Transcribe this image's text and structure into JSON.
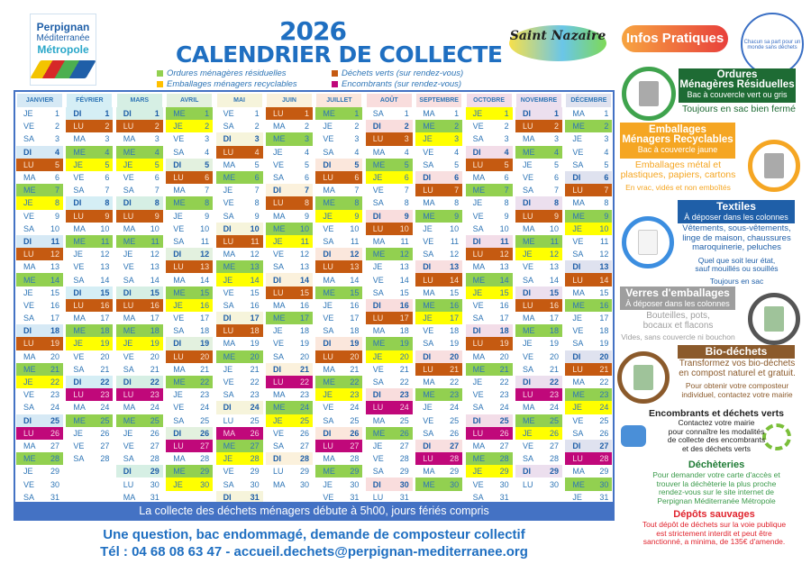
{
  "header": {
    "logo_lines": [
      "Perpignan",
      "Méditerranée",
      "Métropole"
    ],
    "year": "2026",
    "title": "CALENDRIER DE COLLECTE",
    "partner_logo": "Saint Nazaire"
  },
  "legend": [
    {
      "label": "Ordures ménagères résiduelles",
      "code": "G",
      "color": "#92d050"
    },
    {
      "label": "Emballages ménagers recyclables",
      "code": "Y",
      "color": "#ffc000"
    },
    {
      "label": "Déchets verts (sur rendez-vous)",
      "code": "O",
      "color": "#c55a11"
    },
    {
      "label": "Encombrants (sur rendez-vous)",
      "code": "M",
      "color": "#c0087a"
    }
  ],
  "weekday_abbr": [
    "LU",
    "MA",
    "ME",
    "JE",
    "VE",
    "SA",
    "DI"
  ],
  "months": [
    {
      "name": "JANVIER",
      "first_weekday": "JE",
      "tint": "#d6e9f5",
      "codes": "....O.GY...O.G....O.GY...M.G..."
    },
    {
      "name": "FÉVRIER",
      "first_weekday": "DI",
      "tint": "#d5eef5",
      "codes": ".O.GY...O.G....O.GY...M.G..."
    },
    {
      "name": "MARS",
      "first_weekday": "DI",
      "tint": "#d6efe4",
      "codes": ".O.GY...O.G....O.GY...M.G......"
    },
    {
      "name": "AVRIL",
      "first_weekday": "ME",
      "tint": "#e3f1df",
      "codes": "GY...O.G....O.GY...O.G....M.GY"
    },
    {
      "name": "MAI",
      "first_weekday": "VE",
      "tint": "#f6f4db",
      "codes": "...O.G....O.GY...O.G.....MGY..."
    },
    {
      "name": "JUIN",
      "first_weekday": "LU",
      "tint": "#fbf1dc",
      "codes": "O.G....O.GY...O.G....M.GY....."
    },
    {
      "name": "JUILLET",
      "first_weekday": "ME",
      "tint": "#fbe7dc",
      "codes": "G....O.GY...O.G....O.GY...M.G.."
    },
    {
      "name": "AOÛT",
      "first_weekday": "SA",
      "tint": "#f9dddd",
      "codes": "..O.GY...O.G....O.GY...M.G....."
    },
    {
      "name": "SEPTEMBRE",
      "first_weekday": "MA",
      "tint": "#f8dfe0",
      "codes": ".GY...O.G....O.GY...O.G....M.G"
    },
    {
      "name": "OCTOBRE",
      "first_weekday": "JE",
      "tint": "#f3dde8",
      "codes": "Y...O.G....O.GY...O.G....M.GY.."
    },
    {
      "name": "NOVEMBRE",
      "first_weekday": "DI",
      "tint": "#ecdfee",
      "codes": ".O.G....O.GY...O.G....M.GY...."
    },
    {
      "name": "DÉCEMBRE",
      "first_weekday": "MA",
      "tint": "#dfe2ef",
      "codes": ".G....O.GY...O.G....O.GY...M.G."
    }
  ],
  "banner": "La collecte des déchets ménagers débute à 5h00, jours fériés compris",
  "footer": {
    "line1": "Une question, bac endommagé, demande de composteur collectif",
    "line2": "Tél : 04 68 08 63 47 - accueil.dechets@perpignan-mediterranee.org"
  },
  "infos": {
    "title": "Infos Pratiques",
    "seal": "Chacun sa part pour un monde sans déchets",
    "omr": {
      "title1": "Ordures",
      "title2": "Ménagères Résiduelles",
      "sub": "Bac à couvercle vert ou gris",
      "note": "Toujours en sac bien fermé",
      "color": "#1e6b34"
    },
    "emb": {
      "title1": "Emballages",
      "title2": "Ménagers Recyclables",
      "sub": "Bac à couvercle jaune",
      "note1": "Emballages métal et",
      "note2": "plastiques, papiers, cartons",
      "note3": "En vrac, vidés et non emboîtés",
      "color": "#f5a623"
    },
    "tex": {
      "title": "Textiles",
      "sub": "À déposer dans les colonnes",
      "l1": "Vêtements, sous-vêtements,",
      "l2": "linge de maison, chaussures",
      "l3": "maroquinerie, peluches",
      "n1": "Quel que soit leur état,",
      "n2": "sauf mouillés ou souillés",
      "n3": "Toujours en sac",
      "color": "#1f5fa8"
    },
    "verre": {
      "title": "Verres d'emballages",
      "sub": "À déposer dans les colonnes",
      "l1": "Bouteilles, pots,",
      "l2": "bocaux et flacons",
      "n1": "Vides, sans couvercle ni bouchon",
      "color": "#9e9e9e"
    },
    "bio": {
      "title": "Bio-déchets",
      "l1": "Transformez vos bio-déchets",
      "l2": "en compost naturel et gratuit.",
      "n1": "Pour obtenir votre composteur",
      "n2": "individuel, contactez votre mairie",
      "color": "#8b5a2b"
    },
    "enc": {
      "title": "Encombrants et déchets verts",
      "l1": "Contactez votre mairie",
      "l2": "pour connaître les modalités",
      "l3": "de collecte des encombrants",
      "l4": "et des déchets verts"
    },
    "dech": {
      "title": "Déchèteries",
      "l1": "Pour demander votre carte d'accès et",
      "l2": "trouver la déchèterie la plus proche",
      "l3": "rendez-vous sur le site internet de",
      "l4": "Perpignan Méditerranée Métropole"
    },
    "dep": {
      "title": "Dépôts sauvages",
      "l1": "Tout dépôt de déchets sur la voie publique",
      "l2": "est strictement interdit et peut être",
      "l3": "sanctionné, a minima, de 135€ d'amende."
    }
  }
}
